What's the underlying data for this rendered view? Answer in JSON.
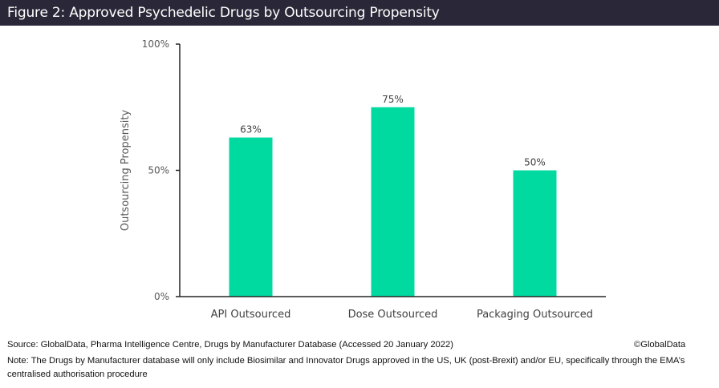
{
  "header": {
    "title": "Figure 2: Approved Psychedelic Drugs by Outsourcing Propensity"
  },
  "chart_data": {
    "type": "bar",
    "title": "Figure 2: Approved Psychedelic Drugs by Outsourcing Propensity",
    "categories": [
      "API Outsourced",
      "Dose Outsourced",
      "Packaging Outsourced"
    ],
    "values": [
      63,
      75,
      50
    ],
    "data_labels": [
      "63%",
      "75%",
      "50%"
    ],
    "xlabel": "",
    "ylabel": "Outsourcing Propensity",
    "ylim": [
      0,
      100
    ],
    "yticks": [
      0,
      50,
      100
    ],
    "ytick_labels": [
      "0%",
      "50%",
      "100%"
    ],
    "grid": false,
    "legend": "none",
    "bar_color": "#00d9a0"
  },
  "footer": {
    "source": "Source: GlobalData, Pharma Intelligence Centre, Drugs by Manufacturer Database (Accessed 20 January 2022)",
    "copyright": "©GlobalData",
    "note_line1": "Note:  The Drugs by Manufacturer database will only include Biosimilar and Innovator Drugs approved in the US, UK (post-Brexit) and/or EU, specifically through the EMA’s",
    "note_line2": "centralised authorisation procedure"
  }
}
